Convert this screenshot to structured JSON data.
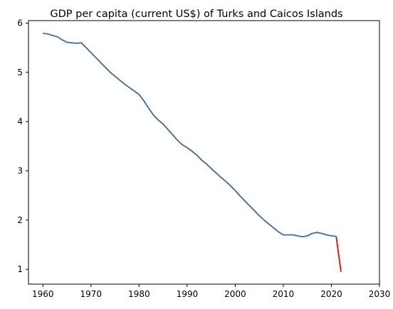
{
  "chart_data": {
    "type": "line",
    "title": "GDP per capita (current US$) of Turks and Caicos Islands",
    "xlabel": "",
    "ylabel": "",
    "xlim": [
      1957,
      2030
    ],
    "ylim": [
      0.7,
      6.05
    ],
    "xticks": [
      1960,
      1970,
      1980,
      1990,
      2000,
      2010,
      2020,
      2030
    ],
    "yticks": [
      1,
      2,
      3,
      4,
      5,
      6
    ],
    "grid": false,
    "legend": "none",
    "series": [
      {
        "color": "#3a6aa5",
        "points": [
          [
            1960,
            5.79
          ],
          [
            1961,
            5.78
          ],
          [
            1962,
            5.75
          ],
          [
            1963,
            5.72
          ],
          [
            1964,
            5.66
          ],
          [
            1965,
            5.61
          ],
          [
            1966,
            5.6
          ],
          [
            1967,
            5.59
          ],
          [
            1968,
            5.6
          ],
          [
            1969,
            5.5
          ],
          [
            1970,
            5.4
          ],
          [
            1971,
            5.3
          ],
          [
            1972,
            5.2
          ],
          [
            1973,
            5.1
          ],
          [
            1974,
            5.0
          ],
          [
            1975,
            4.92
          ],
          [
            1976,
            4.84
          ],
          [
            1977,
            4.76
          ],
          [
            1978,
            4.69
          ],
          [
            1979,
            4.62
          ],
          [
            1980,
            4.55
          ],
          [
            1981,
            4.42
          ],
          [
            1982,
            4.27
          ],
          [
            1983,
            4.13
          ],
          [
            1984,
            4.03
          ],
          [
            1985,
            3.95
          ],
          [
            1986,
            3.84
          ],
          [
            1987,
            3.73
          ],
          [
            1988,
            3.62
          ],
          [
            1989,
            3.53
          ],
          [
            1990,
            3.47
          ],
          [
            1991,
            3.4
          ],
          [
            1992,
            3.32
          ],
          [
            1993,
            3.22
          ],
          [
            1994,
            3.14
          ],
          [
            1995,
            3.05
          ],
          [
            1996,
            2.96
          ],
          [
            1997,
            2.87
          ],
          [
            1998,
            2.79
          ],
          [
            1999,
            2.7
          ],
          [
            2000,
            2.6
          ],
          [
            2001,
            2.49
          ],
          [
            2002,
            2.39
          ],
          [
            2003,
            2.29
          ],
          [
            2004,
            2.19
          ],
          [
            2005,
            2.09
          ],
          [
            2006,
            2.0
          ],
          [
            2007,
            1.92
          ],
          [
            2008,
            1.84
          ],
          [
            2009,
            1.76
          ],
          [
            2010,
            1.7
          ],
          [
            2011,
            1.7
          ],
          [
            2012,
            1.7
          ],
          [
            2013,
            1.68
          ],
          [
            2014,
            1.66
          ],
          [
            2015,
            1.68
          ],
          [
            2016,
            1.73
          ],
          [
            2017,
            1.75
          ],
          [
            2018,
            1.73
          ],
          [
            2019,
            1.7
          ],
          [
            2020,
            1.68
          ],
          [
            2021,
            1.67
          ]
        ]
      },
      {
        "color": "#ff0000",
        "points": [
          [
            2021,
            1.67
          ],
          [
            2022,
            0.95
          ]
        ]
      }
    ]
  }
}
